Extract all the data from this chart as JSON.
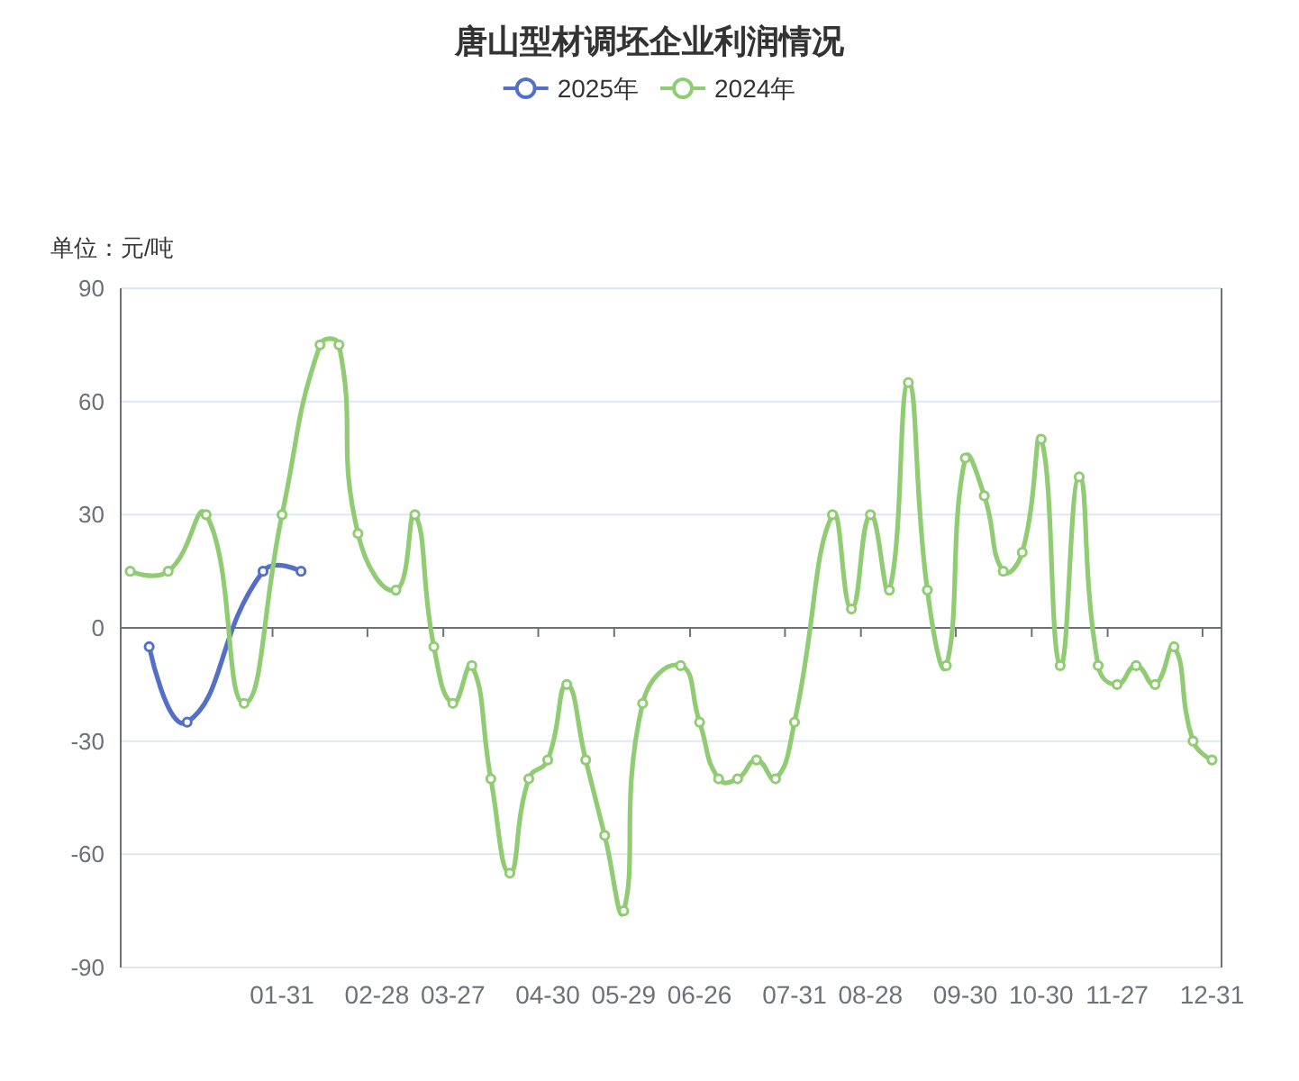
{
  "chart_data": {
    "type": "line",
    "title": "唐山型材调坯企业利润情况",
    "ylabel": "单位：元/吨",
    "categories": [
      null,
      null,
      null,
      null,
      null,
      null,
      null,
      null,
      "01-31",
      null,
      null,
      null,
      null,
      "02-28",
      null,
      null,
      null,
      "03-27",
      null,
      null,
      null,
      null,
      "04-30",
      null,
      null,
      null,
      "05-29",
      null,
      null,
      null,
      "06-26",
      null,
      null,
      null,
      null,
      "07-31",
      null,
      null,
      null,
      "08-28",
      null,
      null,
      null,
      null,
      "09-30",
      null,
      null,
      null,
      "10-30",
      null,
      null,
      null,
      "11-27",
      null,
      null,
      null,
      null,
      "12-31"
    ],
    "series": [
      {
        "name": "2025年",
        "color": "#5470c6",
        "values": [
          null,
          -5,
          null,
          -25,
          null,
          null,
          null,
          15,
          null,
          15,
          null,
          null,
          null,
          null,
          null,
          null,
          null,
          null,
          null,
          null,
          null,
          null,
          null,
          null,
          null,
          null,
          null,
          null,
          null,
          null,
          null,
          null,
          null,
          null,
          null,
          null,
          null,
          null,
          null,
          null,
          null,
          null,
          null,
          null,
          null,
          null,
          null,
          null,
          null,
          null,
          null,
          null,
          null,
          null,
          null,
          null,
          null,
          null
        ]
      },
      {
        "name": "2024年",
        "color": "#91cc75",
        "values": [
          15,
          null,
          15,
          null,
          30,
          null,
          -20,
          null,
          30,
          null,
          75,
          75,
          25,
          null,
          10,
          30,
          -5,
          -20,
          -10,
          -40,
          -65,
          -40,
          -35,
          -15,
          -35,
          -55,
          -75,
          -20,
          null,
          -10,
          -25,
          -40,
          -40,
          -35,
          -40,
          -25,
          null,
          30,
          5,
          30,
          10,
          65,
          10,
          -10,
          45,
          35,
          15,
          20,
          50,
          -10,
          40,
          -10,
          -15,
          -10,
          -15,
          -5,
          -30,
          -35
        ]
      }
    ],
    "ylim": [
      -90,
      90
    ],
    "yticks": [
      -90,
      -60,
      -30,
      0,
      30,
      60,
      90
    ],
    "grid": "y",
    "legend": "top",
    "marker": "circle"
  }
}
